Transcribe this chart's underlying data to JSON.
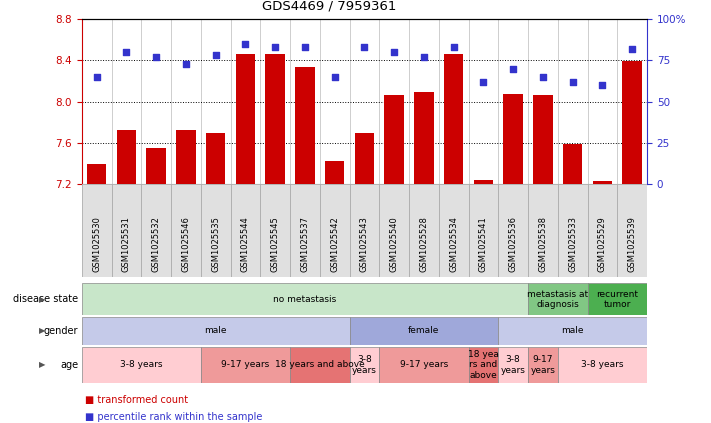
{
  "title": "GDS4469 / 7959361",
  "samples": [
    "GSM1025530",
    "GSM1025531",
    "GSM1025532",
    "GSM1025546",
    "GSM1025535",
    "GSM1025544",
    "GSM1025545",
    "GSM1025537",
    "GSM1025542",
    "GSM1025543",
    "GSM1025540",
    "GSM1025528",
    "GSM1025534",
    "GSM1025541",
    "GSM1025536",
    "GSM1025538",
    "GSM1025533",
    "GSM1025529",
    "GSM1025539"
  ],
  "bar_values": [
    7.39,
    7.72,
    7.55,
    7.72,
    7.69,
    8.46,
    8.46,
    8.33,
    7.42,
    7.69,
    8.06,
    8.09,
    8.46,
    7.24,
    8.07,
    8.06,
    7.59,
    7.23,
    8.39
  ],
  "percentile_values": [
    65,
    80,
    77,
    73,
    78,
    85,
    83,
    83,
    65,
    83,
    80,
    77,
    83,
    62,
    70,
    65,
    62,
    60,
    82
  ],
  "ylim_left": [
    7.2,
    8.8
  ],
  "ylim_right": [
    0,
    100
  ],
  "yticks_left": [
    7.2,
    7.6,
    8.0,
    8.4,
    8.8
  ],
  "yticks_right": [
    0,
    25,
    50,
    75,
    100
  ],
  "bar_color": "#cc0000",
  "dot_color": "#3333cc",
  "disease_state_groups": [
    {
      "label": "no metastasis",
      "start": 0,
      "end": 15,
      "color": "#c8e6c9"
    },
    {
      "label": "metastasis at\ndiagnosis",
      "start": 15,
      "end": 17,
      "color": "#81c784"
    },
    {
      "label": "recurrent\ntumor",
      "start": 17,
      "end": 19,
      "color": "#4caf50"
    }
  ],
  "gender_groups": [
    {
      "label": "male",
      "start": 0,
      "end": 9,
      "color": "#c5cae9"
    },
    {
      "label": "female",
      "start": 9,
      "end": 14,
      "color": "#9fa8da"
    },
    {
      "label": "male",
      "start": 14,
      "end": 19,
      "color": "#c5cae9"
    }
  ],
  "age_groups": [
    {
      "label": "3-8 years",
      "start": 0,
      "end": 4,
      "color": "#ffcdd2"
    },
    {
      "label": "9-17 years",
      "start": 4,
      "end": 7,
      "color": "#ef9a9a"
    },
    {
      "label": "18 years and above",
      "start": 7,
      "end": 9,
      "color": "#e57373"
    },
    {
      "label": "3-8\nyears",
      "start": 9,
      "end": 10,
      "color": "#ffcdd2"
    },
    {
      "label": "9-17 years",
      "start": 10,
      "end": 13,
      "color": "#ef9a9a"
    },
    {
      "label": "18 yea\nrs and\nabove",
      "start": 13,
      "end": 14,
      "color": "#e57373"
    },
    {
      "label": "3-8\nyears",
      "start": 14,
      "end": 15,
      "color": "#ffcdd2"
    },
    {
      "label": "9-17\nyears",
      "start": 15,
      "end": 16,
      "color": "#ef9a9a"
    },
    {
      "label": "3-8 years",
      "start": 16,
      "end": 19,
      "color": "#ffcdd2"
    }
  ],
  "legend_items": [
    {
      "color": "#cc0000",
      "label": "transformed count"
    },
    {
      "color": "#3333cc",
      "label": "percentile rank within the sample"
    }
  ],
  "grid_dotted_at": [
    7.6,
    8.0,
    8.4
  ],
  "col_sep_color": "#aaaaaa",
  "label_arrow_color": "#777777"
}
